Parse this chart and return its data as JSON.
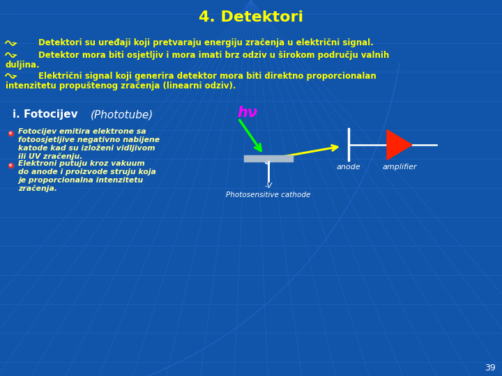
{
  "title": "4. Detektori",
  "title_color": "#FFFF00",
  "title_fontsize": 16,
  "bg_color": "#1155AA",
  "bullet_color": "#FFFF00",
  "bullet1": "Detektori su uređaji koji pretvaraju energiju zračenja u električni signal.",
  "bullet2a": "Detektor mora biti osjetljiv i mora imati brz odziv u širokom području valnih",
  "bullet2b": "duljina.",
  "bullet3a": "Električni signal koji generira detektor mora biti direktno proporcionalan",
  "bullet3b": "intenzitetu propuštenog zračenja (linearni odziv).",
  "section_title": "i. Fotocijev",
  "section_title_italic": "(Phototube)",
  "section_title_color": "#FFFFFF",
  "left_text_color": "#FFFF99",
  "hv_label": "hν",
  "hv_color": "#FF00FF",
  "electron_label": "e⁻",
  "anode_label": "anode",
  "amplifier_label": "amplifier",
  "label_color": "#FFFFFF",
  "cathode_minus_v": "-V",
  "cathode_name": "Photosensitive cathode",
  "green_arrow_color": "#00FF00",
  "yellow_arrow_color": "#FFFF00",
  "amplifier_color": "#FF2200",
  "cathode_color": "#AABBCC",
  "page_number": "39",
  "grid_color": "#2266CC",
  "grid_lw": 0.6
}
